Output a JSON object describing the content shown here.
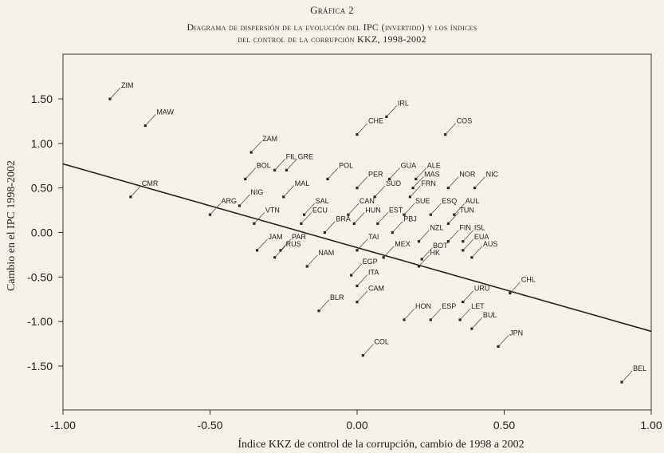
{
  "figure_label": "Gráfica 2",
  "title_line1": "Diagrama de dispersión de la evolución del IPC (invertido) y los índices",
  "title_line2": "del control de la corrupción KKZ, 1998-2002",
  "chart_data": {
    "type": "scatter",
    "xlabel": "Índice KKZ de control de la corrupción, cambio de 1998 a 2002",
    "ylabel": "Cambio en el IPC 1998-2002",
    "xlim": [
      -1.0,
      1.0
    ],
    "ylim": [
      -2.0,
      2.0
    ],
    "x_ticks": [
      "-1.00",
      "-0.50",
      "0.00",
      "0.50",
      "1.00"
    ],
    "x_tick_values": [
      -1.0,
      -0.5,
      0.0,
      0.5,
      1.0
    ],
    "y_ticks": [
      "1.50",
      "1.00",
      "0.50",
      "0.00",
      "-0.50",
      "-1.00",
      "-1.50"
    ],
    "y_tick_values": [
      1.5,
      1.0,
      0.5,
      0.0,
      -0.5,
      -1.0,
      -1.5
    ],
    "grid": false,
    "fit_line": {
      "x": [
        -1.0,
        1.0
      ],
      "y": [
        0.77,
        -1.11
      ]
    },
    "points": [
      {
        "label": "ZIM",
        "x": -0.84,
        "y": 1.5
      },
      {
        "label": "MAW",
        "x": -0.72,
        "y": 1.2
      },
      {
        "label": "CMR",
        "x": -0.77,
        "y": 0.4
      },
      {
        "label": "ZAM",
        "x": -0.36,
        "y": 0.9
      },
      {
        "label": "FIL",
        "x": -0.28,
        "y": 0.7
      },
      {
        "label": "GRE",
        "x": -0.24,
        "y": 0.7
      },
      {
        "label": "BOL",
        "x": -0.38,
        "y": 0.6
      },
      {
        "label": "MAL",
        "x": -0.25,
        "y": 0.4
      },
      {
        "label": "NIG",
        "x": -0.4,
        "y": 0.3
      },
      {
        "label": "ARG",
        "x": -0.5,
        "y": 0.2
      },
      {
        "label": "VTN",
        "x": -0.35,
        "y": 0.1
      },
      {
        "label": "SAL",
        "x": -0.18,
        "y": 0.2
      },
      {
        "label": "ECU",
        "x": -0.19,
        "y": 0.1
      },
      {
        "label": "BRA",
        "x": -0.11,
        "y": 0.0
      },
      {
        "label": "JAM",
        "x": -0.34,
        "y": -0.2
      },
      {
        "label": "PAR",
        "x": -0.26,
        "y": -0.2
      },
      {
        "label": "RUS",
        "x": -0.28,
        "y": -0.28
      },
      {
        "label": "NAM",
        "x": -0.17,
        "y": -0.38
      },
      {
        "label": "POL",
        "x": -0.1,
        "y": 0.6
      },
      {
        "label": "CHE",
        "x": 0.0,
        "y": 1.1
      },
      {
        "label": "IRL",
        "x": 0.1,
        "y": 1.3
      },
      {
        "label": "COS",
        "x": 0.3,
        "y": 1.1
      },
      {
        "label": "PER",
        "x": 0.0,
        "y": 0.5
      },
      {
        "label": "GUA",
        "x": 0.11,
        "y": 0.6
      },
      {
        "label": "ALE",
        "x": 0.2,
        "y": 0.6
      },
      {
        "label": "MAS",
        "x": 0.19,
        "y": 0.5
      },
      {
        "label": "SUD",
        "x": 0.06,
        "y": 0.4
      },
      {
        "label": "FRN",
        "x": 0.18,
        "y": 0.4
      },
      {
        "label": "NOR",
        "x": 0.31,
        "y": 0.5
      },
      {
        "label": "NIC",
        "x": 0.4,
        "y": 0.5
      },
      {
        "label": "CAN",
        "x": -0.03,
        "y": 0.2
      },
      {
        "label": "HUN",
        "x": -0.01,
        "y": 0.1
      },
      {
        "label": "EST",
        "x": 0.07,
        "y": 0.1
      },
      {
        "label": "SUE",
        "x": 0.16,
        "y": 0.2
      },
      {
        "label": "ESQ",
        "x": 0.25,
        "y": 0.2
      },
      {
        "label": "TUN",
        "x": 0.31,
        "y": 0.1
      },
      {
        "label": "AUL",
        "x": 0.33,
        "y": 0.2
      },
      {
        "label": "PBJ",
        "x": 0.12,
        "y": 0.0
      },
      {
        "label": "NZL",
        "x": 0.21,
        "y": -0.1
      },
      {
        "label": "FIN",
        "x": 0.31,
        "y": -0.1
      },
      {
        "label": "ISL",
        "x": 0.36,
        "y": -0.1
      },
      {
        "label": "EUA",
        "x": 0.36,
        "y": -0.2
      },
      {
        "label": "AUS",
        "x": 0.39,
        "y": -0.28
      },
      {
        "label": "TAI",
        "x": 0.0,
        "y": -0.2
      },
      {
        "label": "MEX",
        "x": 0.09,
        "y": -0.28
      },
      {
        "label": "BOT",
        "x": 0.22,
        "y": -0.3
      },
      {
        "label": "HK",
        "x": 0.21,
        "y": -0.38
      },
      {
        "label": "EGP",
        "x": -0.02,
        "y": -0.48
      },
      {
        "label": "ITA",
        "x": 0.0,
        "y": -0.6
      },
      {
        "label": "CAM",
        "x": 0.0,
        "y": -0.78
      },
      {
        "label": "BLR",
        "x": -0.13,
        "y": -0.88
      },
      {
        "label": "URU",
        "x": 0.36,
        "y": -0.78
      },
      {
        "label": "CHL",
        "x": 0.52,
        "y": -0.68
      },
      {
        "label": "HON",
        "x": 0.16,
        "y": -0.98
      },
      {
        "label": "ESP",
        "x": 0.25,
        "y": -0.98
      },
      {
        "label": "LET",
        "x": 0.35,
        "y": -0.98
      },
      {
        "label": "BUL",
        "x": 0.39,
        "y": -1.08
      },
      {
        "label": "JPN",
        "x": 0.48,
        "y": -1.28
      },
      {
        "label": "COL",
        "x": 0.02,
        "y": -1.38
      },
      {
        "label": "BEL",
        "x": 0.9,
        "y": -1.68
      }
    ]
  }
}
